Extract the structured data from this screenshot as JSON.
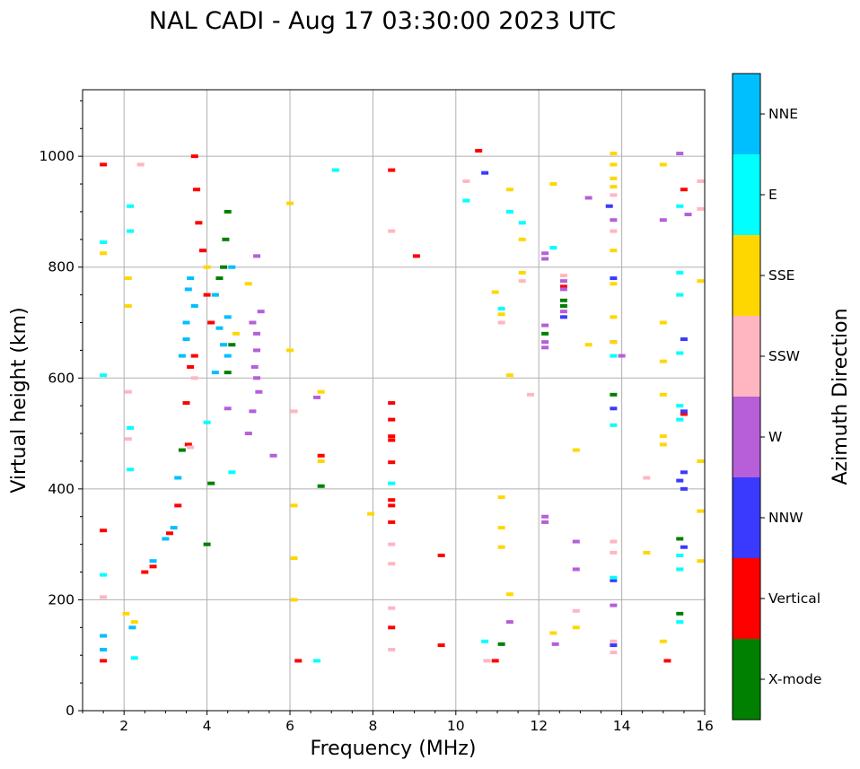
{
  "chart_data": {
    "type": "scatter",
    "title": "NAL CADI - Aug 17 03:30:00 2023 UTC",
    "xlabel": "Frequency (MHz)",
    "ylabel": "Virtual height (km)",
    "xlim": [
      1,
      16
    ],
    "ylim": [
      0,
      1120
    ],
    "xticks": [
      2,
      4,
      6,
      8,
      10,
      12,
      14,
      16
    ],
    "yticks": [
      0,
      200,
      400,
      600,
      800,
      1000
    ],
    "grid": true,
    "colorbar": {
      "label": "Azimuth Direction",
      "categories": [
        {
          "name": "X-mode",
          "color": "#008000"
        },
        {
          "name": "Vertical",
          "color": "#ff0000"
        },
        {
          "name": "NNW",
          "color": "#3a3aff"
        },
        {
          "name": "W",
          "color": "#b65fd8"
        },
        {
          "name": "SSW",
          "color": "#ffb6c1"
        },
        {
          "name": "SSE",
          "color": "#ffd700"
        },
        {
          "name": "E",
          "color": "#00ffff"
        },
        {
          "name": "NNE",
          "color": "#00bfff"
        }
      ]
    },
    "series": [
      {
        "name": "X-mode",
        "points": [
          [
            3.4,
            470
          ],
          [
            4.1,
            410
          ],
          [
            4.5,
            610
          ],
          [
            4.6,
            660
          ],
          [
            4.5,
            900
          ],
          [
            4.45,
            850
          ],
          [
            4.3,
            780
          ],
          [
            6.75,
            405
          ],
          [
            11.1,
            120
          ],
          [
            12.15,
            680
          ],
          [
            12.6,
            730
          ],
          [
            12.6,
            740
          ],
          [
            13.8,
            570
          ],
          [
            15.4,
            175
          ],
          [
            15.4,
            310
          ],
          [
            4.0,
            300
          ],
          [
            4.4,
            800
          ]
        ]
      },
      {
        "name": "Vertical",
        "points": [
          [
            1.5,
            985
          ],
          [
            1.5,
            325
          ],
          [
            1.5,
            90
          ],
          [
            3.5,
            555
          ],
          [
            3.6,
            620
          ],
          [
            3.7,
            640
          ],
          [
            3.7,
            1000
          ],
          [
            3.75,
            940
          ],
          [
            3.8,
            880
          ],
          [
            3.9,
            830
          ],
          [
            4.0,
            750
          ],
          [
            4.1,
            700
          ],
          [
            3.55,
            480
          ],
          [
            6.2,
            90
          ],
          [
            6.75,
            460
          ],
          [
            8.45,
            975
          ],
          [
            8.45,
            555
          ],
          [
            8.45,
            525
          ],
          [
            8.45,
            495
          ],
          [
            8.45,
            488
          ],
          [
            8.45,
            448
          ],
          [
            8.45,
            380
          ],
          [
            8.45,
            370
          ],
          [
            8.45,
            340
          ],
          [
            8.45,
            150
          ],
          [
            9.05,
            820
          ],
          [
            9.65,
            280
          ],
          [
            9.65,
            118
          ],
          [
            10.55,
            1010
          ],
          [
            10.95,
            90
          ],
          [
            12.6,
            765
          ],
          [
            15.5,
            940
          ],
          [
            15.5,
            535
          ],
          [
            15.1,
            90
          ],
          [
            2.5,
            250
          ],
          [
            2.7,
            260
          ],
          [
            3.1,
            320
          ],
          [
            3.3,
            370
          ]
        ]
      },
      {
        "name": "NNW",
        "points": [
          [
            10.7,
            970
          ],
          [
            12.6,
            710
          ],
          [
            13.8,
            780
          ],
          [
            13.8,
            545
          ],
          [
            13.8,
            235
          ],
          [
            13.8,
            118
          ],
          [
            15.5,
            670
          ],
          [
            15.5,
            540
          ],
          [
            15.5,
            430
          ],
          [
            15.5,
            400
          ],
          [
            15.5,
            295
          ],
          [
            13.7,
            910
          ],
          [
            15.4,
            415
          ]
        ]
      },
      {
        "name": "W",
        "points": [
          [
            5.2,
            820
          ],
          [
            5.1,
            700
          ],
          [
            5.2,
            680
          ],
          [
            5.2,
            650
          ],
          [
            5.15,
            620
          ],
          [
            5.2,
            600
          ],
          [
            5.25,
            575
          ],
          [
            5.1,
            540
          ],
          [
            5.0,
            500
          ],
          [
            5.6,
            460
          ],
          [
            5.3,
            720
          ],
          [
            6.65,
            565
          ],
          [
            12.15,
            815
          ],
          [
            12.15,
            825
          ],
          [
            12.15,
            695
          ],
          [
            12.15,
            665
          ],
          [
            12.15,
            655
          ],
          [
            12.15,
            350
          ],
          [
            12.15,
            340
          ],
          [
            12.6,
            775
          ],
          [
            12.6,
            760
          ],
          [
            12.6,
            720
          ],
          [
            12.9,
            305
          ],
          [
            12.9,
            255
          ],
          [
            13.2,
            925
          ],
          [
            13.8,
            885
          ],
          [
            13.8,
            665
          ],
          [
            13.8,
            190
          ],
          [
            12.4,
            120
          ],
          [
            15.4,
            1005
          ],
          [
            15.0,
            885
          ],
          [
            15.6,
            895
          ],
          [
            11.3,
            160
          ],
          [
            14.0,
            640
          ],
          [
            4.5,
            545
          ]
        ]
      },
      {
        "name": "SSW",
        "points": [
          [
            1.5,
            205
          ],
          [
            2.4,
            985
          ],
          [
            2.1,
            575
          ],
          [
            2.1,
            490
          ],
          [
            3.6,
            475
          ],
          [
            3.7,
            600
          ],
          [
            6.1,
            540
          ],
          [
            8.45,
            865
          ],
          [
            8.45,
            300
          ],
          [
            8.45,
            265
          ],
          [
            8.45,
            185
          ],
          [
            8.45,
            110
          ],
          [
            10.25,
            955
          ],
          [
            11.1,
            700
          ],
          [
            12.6,
            785
          ],
          [
            12.9,
            180
          ],
          [
            13.8,
            930
          ],
          [
            13.8,
            865
          ],
          [
            13.8,
            305
          ],
          [
            13.8,
            285
          ],
          [
            13.8,
            125
          ],
          [
            13.8,
            105
          ],
          [
            14.6,
            420
          ],
          [
            15.9,
            955
          ],
          [
            15.9,
            905
          ],
          [
            11.6,
            775
          ],
          [
            11.8,
            570
          ],
          [
            10.75,
            90
          ]
        ]
      },
      {
        "name": "SSE",
        "points": [
          [
            1.5,
            825
          ],
          [
            2.1,
            780
          ],
          [
            2.1,
            730
          ],
          [
            2.05,
            175
          ],
          [
            2.25,
            160
          ],
          [
            4.0,
            800
          ],
          [
            4.2,
            750
          ],
          [
            4.7,
            680
          ],
          [
            5.0,
            770
          ],
          [
            6.0,
            915
          ],
          [
            6.0,
            650
          ],
          [
            6.1,
            370
          ],
          [
            6.1,
            200
          ],
          [
            6.75,
            575
          ],
          [
            6.75,
            450
          ],
          [
            7.95,
            355
          ],
          [
            10.95,
            755
          ],
          [
            11.1,
            715
          ],
          [
            11.1,
            385
          ],
          [
            11.1,
            330
          ],
          [
            11.1,
            295
          ],
          [
            11.3,
            940
          ],
          [
            11.3,
            605
          ],
          [
            11.3,
            210
          ],
          [
            11.6,
            850
          ],
          [
            11.6,
            790
          ],
          [
            12.35,
            950
          ],
          [
            12.35,
            140
          ],
          [
            12.9,
            470
          ],
          [
            12.9,
            150
          ],
          [
            13.2,
            660
          ],
          [
            13.8,
            1005
          ],
          [
            13.8,
            985
          ],
          [
            13.8,
            960
          ],
          [
            13.8,
            945
          ],
          [
            13.8,
            830
          ],
          [
            13.8,
            770
          ],
          [
            13.8,
            710
          ],
          [
            13.8,
            665
          ],
          [
            14.6,
            285
          ],
          [
            15.0,
            985
          ],
          [
            15.0,
            700
          ],
          [
            15.0,
            630
          ],
          [
            15.0,
            570
          ],
          [
            15.0,
            495
          ],
          [
            15.0,
            480
          ],
          [
            15.0,
            125
          ],
          [
            15.9,
            775
          ],
          [
            15.9,
            450
          ],
          [
            15.9,
            360
          ],
          [
            15.9,
            270
          ],
          [
            6.1,
            275
          ]
        ]
      },
      {
        "name": "E",
        "points": [
          [
            1.5,
            845
          ],
          [
            1.5,
            605
          ],
          [
            1.5,
            245
          ],
          [
            2.15,
            910
          ],
          [
            2.15,
            865
          ],
          [
            2.15,
            510
          ],
          [
            2.15,
            435
          ],
          [
            2.25,
            95
          ],
          [
            4.0,
            520
          ],
          [
            4.6,
            430
          ],
          [
            6.65,
            90
          ],
          [
            7.1,
            975
          ],
          [
            8.45,
            410
          ],
          [
            10.25,
            920
          ],
          [
            10.7,
            125
          ],
          [
            11.1,
            725
          ],
          [
            11.3,
            900
          ],
          [
            11.6,
            880
          ],
          [
            12.35,
            835
          ],
          [
            13.8,
            640
          ],
          [
            13.8,
            515
          ],
          [
            13.8,
            240
          ],
          [
            15.4,
            910
          ],
          [
            15.4,
            790
          ],
          [
            15.4,
            750
          ],
          [
            15.4,
            645
          ],
          [
            15.4,
            550
          ],
          [
            15.4,
            525
          ],
          [
            15.4,
            280
          ],
          [
            15.4,
            255
          ],
          [
            15.4,
            160
          ]
        ]
      },
      {
        "name": "NNE",
        "points": [
          [
            1.5,
            135
          ],
          [
            1.5,
            110
          ],
          [
            2.2,
            150
          ],
          [
            2.7,
            270
          ],
          [
            3.0,
            310
          ],
          [
            3.2,
            330
          ],
          [
            3.3,
            420
          ],
          [
            3.4,
            640
          ],
          [
            3.5,
            670
          ],
          [
            3.5,
            700
          ],
          [
            3.55,
            760
          ],
          [
            3.6,
            780
          ],
          [
            3.7,
            730
          ],
          [
            4.2,
            750
          ],
          [
            4.3,
            690
          ],
          [
            4.4,
            660
          ],
          [
            4.5,
            710
          ],
          [
            4.6,
            800
          ],
          [
            4.5,
            640
          ],
          [
            4.2,
            610
          ]
        ]
      }
    ]
  }
}
